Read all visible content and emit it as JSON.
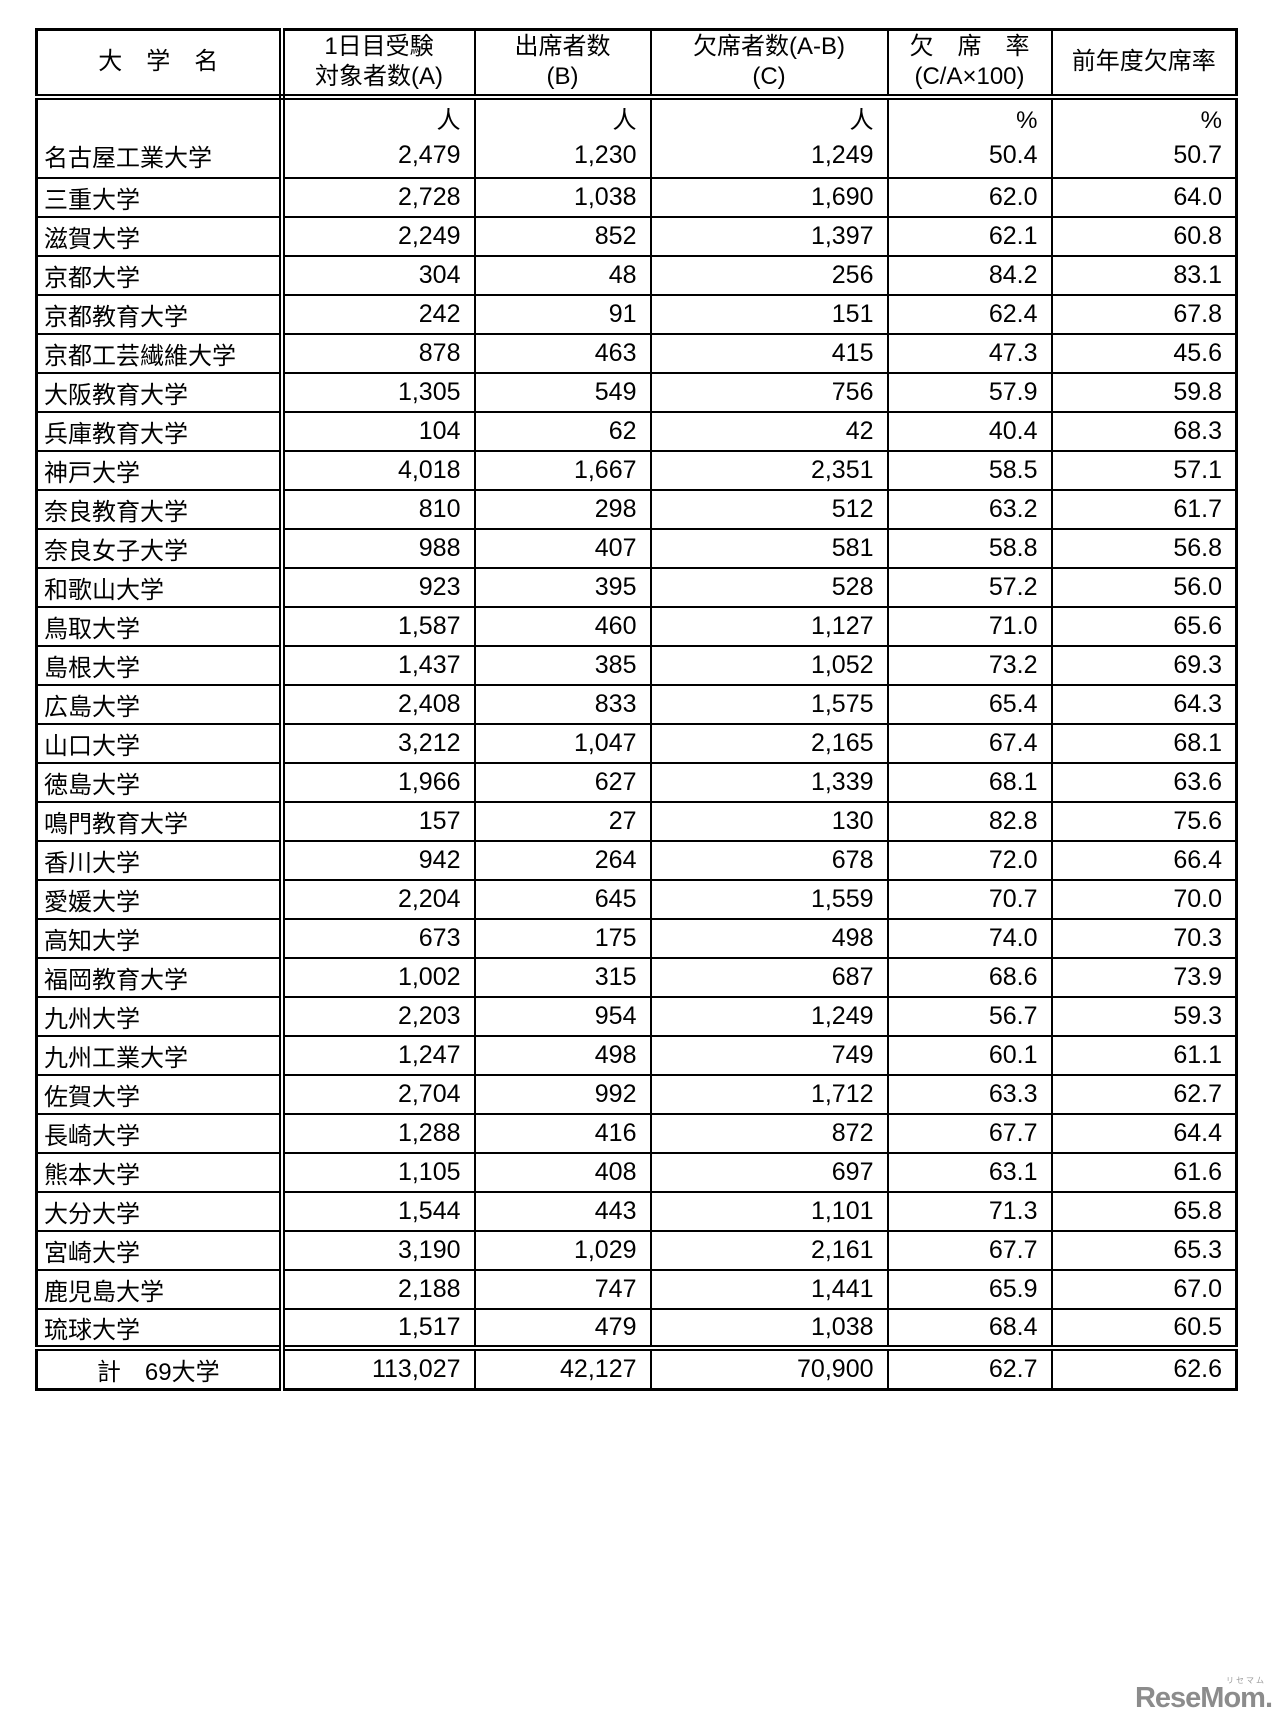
{
  "table": {
    "columns": [
      {
        "label": "大　学　名"
      },
      {
        "label": "1日目受験\n対象者数(A)"
      },
      {
        "label": "出席者数\n(B)"
      },
      {
        "label": "欠席者数(A-B)\n(C)"
      },
      {
        "label": "欠　席　率\n(C/A×100)"
      },
      {
        "label": "前年度欠席率"
      }
    ],
    "units": {
      "name": "",
      "targets": "人",
      "attendees": "人",
      "absentees": "人",
      "absence_rate": "%",
      "prev_year_rate": "%"
    },
    "rows": [
      {
        "name": "名古屋工業大学",
        "targets": "2,479",
        "attendees": "1,230",
        "absentees": "1,249",
        "absence_rate": "50.4",
        "prev_year_rate": "50.7"
      },
      {
        "name": "三重大学",
        "targets": "2,728",
        "attendees": "1,038",
        "absentees": "1,690",
        "absence_rate": "62.0",
        "prev_year_rate": "64.0"
      },
      {
        "name": "滋賀大学",
        "targets": "2,249",
        "attendees": "852",
        "absentees": "1,397",
        "absence_rate": "62.1",
        "prev_year_rate": "60.8"
      },
      {
        "name": "京都大学",
        "targets": "304",
        "attendees": "48",
        "absentees": "256",
        "absence_rate": "84.2",
        "prev_year_rate": "83.1"
      },
      {
        "name": "京都教育大学",
        "targets": "242",
        "attendees": "91",
        "absentees": "151",
        "absence_rate": "62.4",
        "prev_year_rate": "67.8"
      },
      {
        "name": "京都工芸繊維大学",
        "targets": "878",
        "attendees": "463",
        "absentees": "415",
        "absence_rate": "47.3",
        "prev_year_rate": "45.6"
      },
      {
        "name": "大阪教育大学",
        "targets": "1,305",
        "attendees": "549",
        "absentees": "756",
        "absence_rate": "57.9",
        "prev_year_rate": "59.8"
      },
      {
        "name": "兵庫教育大学",
        "targets": "104",
        "attendees": "62",
        "absentees": "42",
        "absence_rate": "40.4",
        "prev_year_rate": "68.3"
      },
      {
        "name": "神戸大学",
        "targets": "4,018",
        "attendees": "1,667",
        "absentees": "2,351",
        "absence_rate": "58.5",
        "prev_year_rate": "57.1"
      },
      {
        "name": "奈良教育大学",
        "targets": "810",
        "attendees": "298",
        "absentees": "512",
        "absence_rate": "63.2",
        "prev_year_rate": "61.7"
      },
      {
        "name": "奈良女子大学",
        "targets": "988",
        "attendees": "407",
        "absentees": "581",
        "absence_rate": "58.8",
        "prev_year_rate": "56.8"
      },
      {
        "name": "和歌山大学",
        "targets": "923",
        "attendees": "395",
        "absentees": "528",
        "absence_rate": "57.2",
        "prev_year_rate": "56.0"
      },
      {
        "name": "鳥取大学",
        "targets": "1,587",
        "attendees": "460",
        "absentees": "1,127",
        "absence_rate": "71.0",
        "prev_year_rate": "65.6"
      },
      {
        "name": "島根大学",
        "targets": "1,437",
        "attendees": "385",
        "absentees": "1,052",
        "absence_rate": "73.2",
        "prev_year_rate": "69.3"
      },
      {
        "name": "広島大学",
        "targets": "2,408",
        "attendees": "833",
        "absentees": "1,575",
        "absence_rate": "65.4",
        "prev_year_rate": "64.3"
      },
      {
        "name": "山口大学",
        "targets": "3,212",
        "attendees": "1,047",
        "absentees": "2,165",
        "absence_rate": "67.4",
        "prev_year_rate": "68.1"
      },
      {
        "name": "徳島大学",
        "targets": "1,966",
        "attendees": "627",
        "absentees": "1,339",
        "absence_rate": "68.1",
        "prev_year_rate": "63.6"
      },
      {
        "name": "鳴門教育大学",
        "targets": "157",
        "attendees": "27",
        "absentees": "130",
        "absence_rate": "82.8",
        "prev_year_rate": "75.6"
      },
      {
        "name": "香川大学",
        "targets": "942",
        "attendees": "264",
        "absentees": "678",
        "absence_rate": "72.0",
        "prev_year_rate": "66.4"
      },
      {
        "name": "愛媛大学",
        "targets": "2,204",
        "attendees": "645",
        "absentees": "1,559",
        "absence_rate": "70.7",
        "prev_year_rate": "70.0"
      },
      {
        "name": "高知大学",
        "targets": "673",
        "attendees": "175",
        "absentees": "498",
        "absence_rate": "74.0",
        "prev_year_rate": "70.3"
      },
      {
        "name": "福岡教育大学",
        "targets": "1,002",
        "attendees": "315",
        "absentees": "687",
        "absence_rate": "68.6",
        "prev_year_rate": "73.9"
      },
      {
        "name": "九州大学",
        "targets": "2,203",
        "attendees": "954",
        "absentees": "1,249",
        "absence_rate": "56.7",
        "prev_year_rate": "59.3"
      },
      {
        "name": "九州工業大学",
        "targets": "1,247",
        "attendees": "498",
        "absentees": "749",
        "absence_rate": "60.1",
        "prev_year_rate": "61.1"
      },
      {
        "name": "佐賀大学",
        "targets": "2,704",
        "attendees": "992",
        "absentees": "1,712",
        "absence_rate": "63.3",
        "prev_year_rate": "62.7"
      },
      {
        "name": "長崎大学",
        "targets": "1,288",
        "attendees": "416",
        "absentees": "872",
        "absence_rate": "67.7",
        "prev_year_rate": "64.4"
      },
      {
        "name": "熊本大学",
        "targets": "1,105",
        "attendees": "408",
        "absentees": "697",
        "absence_rate": "63.1",
        "prev_year_rate": "61.6"
      },
      {
        "name": "大分大学",
        "targets": "1,544",
        "attendees": "443",
        "absentees": "1,101",
        "absence_rate": "71.3",
        "prev_year_rate": "65.8"
      },
      {
        "name": "宮崎大学",
        "targets": "3,190",
        "attendees": "1,029",
        "absentees": "2,161",
        "absence_rate": "67.7",
        "prev_year_rate": "65.3"
      },
      {
        "name": "鹿児島大学",
        "targets": "2,188",
        "attendees": "747",
        "absentees": "1,441",
        "absence_rate": "65.9",
        "prev_year_rate": "67.0"
      },
      {
        "name": "琉球大学",
        "targets": "1,517",
        "attendees": "479",
        "absentees": "1,038",
        "absence_rate": "68.4",
        "prev_year_rate": "60.5"
      }
    ],
    "footer": {
      "name": "計　69大学",
      "targets": "113,027",
      "attendees": "42,127",
      "absentees": "70,900",
      "absence_rate": "62.7",
      "prev_year_rate": "62.6"
    }
  },
  "watermark": {
    "text": "ReseMom.",
    "ruby": "リセマム"
  }
}
